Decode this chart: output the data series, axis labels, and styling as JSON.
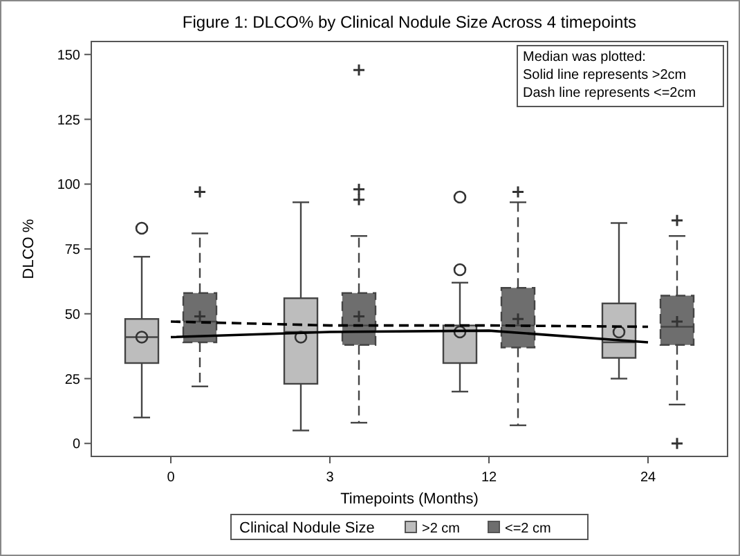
{
  "chart_data": {
    "type": "box",
    "title": "Figure 1: DLCO% by Clinical Nodule Size Across 4 timepoints",
    "xlabel": "Timepoints (Months)",
    "ylabel": "DLCO %",
    "legend_title": "Clinical Nodule Size",
    "legend": "bottom",
    "annotations": [
      "Median was plotted:",
      "Solid line represents >2cm",
      "Dash line represents <=2cm"
    ],
    "categories": [
      "0",
      "3",
      "12",
      "24"
    ],
    "ylim": [
      -5,
      155
    ],
    "yticks": [
      0,
      25,
      50,
      75,
      100,
      125,
      150
    ],
    "series": [
      {
        "name": ">2 cm",
        "color": "#bdbdbd",
        "marker": "circle",
        "line_style": "solid",
        "boxes": [
          {
            "low": 10,
            "q1": 31,
            "median": 41,
            "q3": 48,
            "high": 72,
            "mean": 41,
            "outliers": [
              83
            ]
          },
          {
            "low": 5,
            "q1": 23,
            "median": 43,
            "q3": 56,
            "high": 93,
            "mean": 41
          },
          {
            "low": 20,
            "q1": 31,
            "median": 43.5,
            "q3": 45.5,
            "high": 62,
            "mean": 43,
            "outliers": [
              67,
              95
            ]
          },
          {
            "low": 25,
            "q1": 33,
            "median": 39,
            "q3": 54,
            "high": 85,
            "mean": 43
          }
        ]
      },
      {
        "name": "<=2 cm",
        "color": "#6e6e6e",
        "marker": "cross",
        "line_style": "dashed",
        "boxes": [
          {
            "low": 22,
            "q1": 39,
            "median": 47,
            "q3": 58,
            "high": 81,
            "mean": 49,
            "outliers": [
              97
            ]
          },
          {
            "low": 8,
            "q1": 38,
            "median": 45.5,
            "q3": 58,
            "high": 80,
            "mean": 49,
            "outliers": [
              94,
              98,
              144
            ]
          },
          {
            "low": 7,
            "q1": 37,
            "median": 45.5,
            "q3": 60,
            "high": 93,
            "mean": 48,
            "outliers": [
              97
            ]
          },
          {
            "low": 15,
            "q1": 38,
            "median": 45,
            "q3": 57,
            "high": 80,
            "mean": 47,
            "outliers": [
              0,
              86
            ]
          }
        ]
      },
      {
        "type": "line",
        "color": "#000000",
        "line_style": "solid",
        "values": [
          41,
          43,
          43.5,
          39
        ]
      },
      {
        "type": "line",
        "color": "#000000",
        "line_style": "dashed",
        "values": [
          47,
          45.5,
          45.5,
          45
        ]
      }
    ]
  }
}
